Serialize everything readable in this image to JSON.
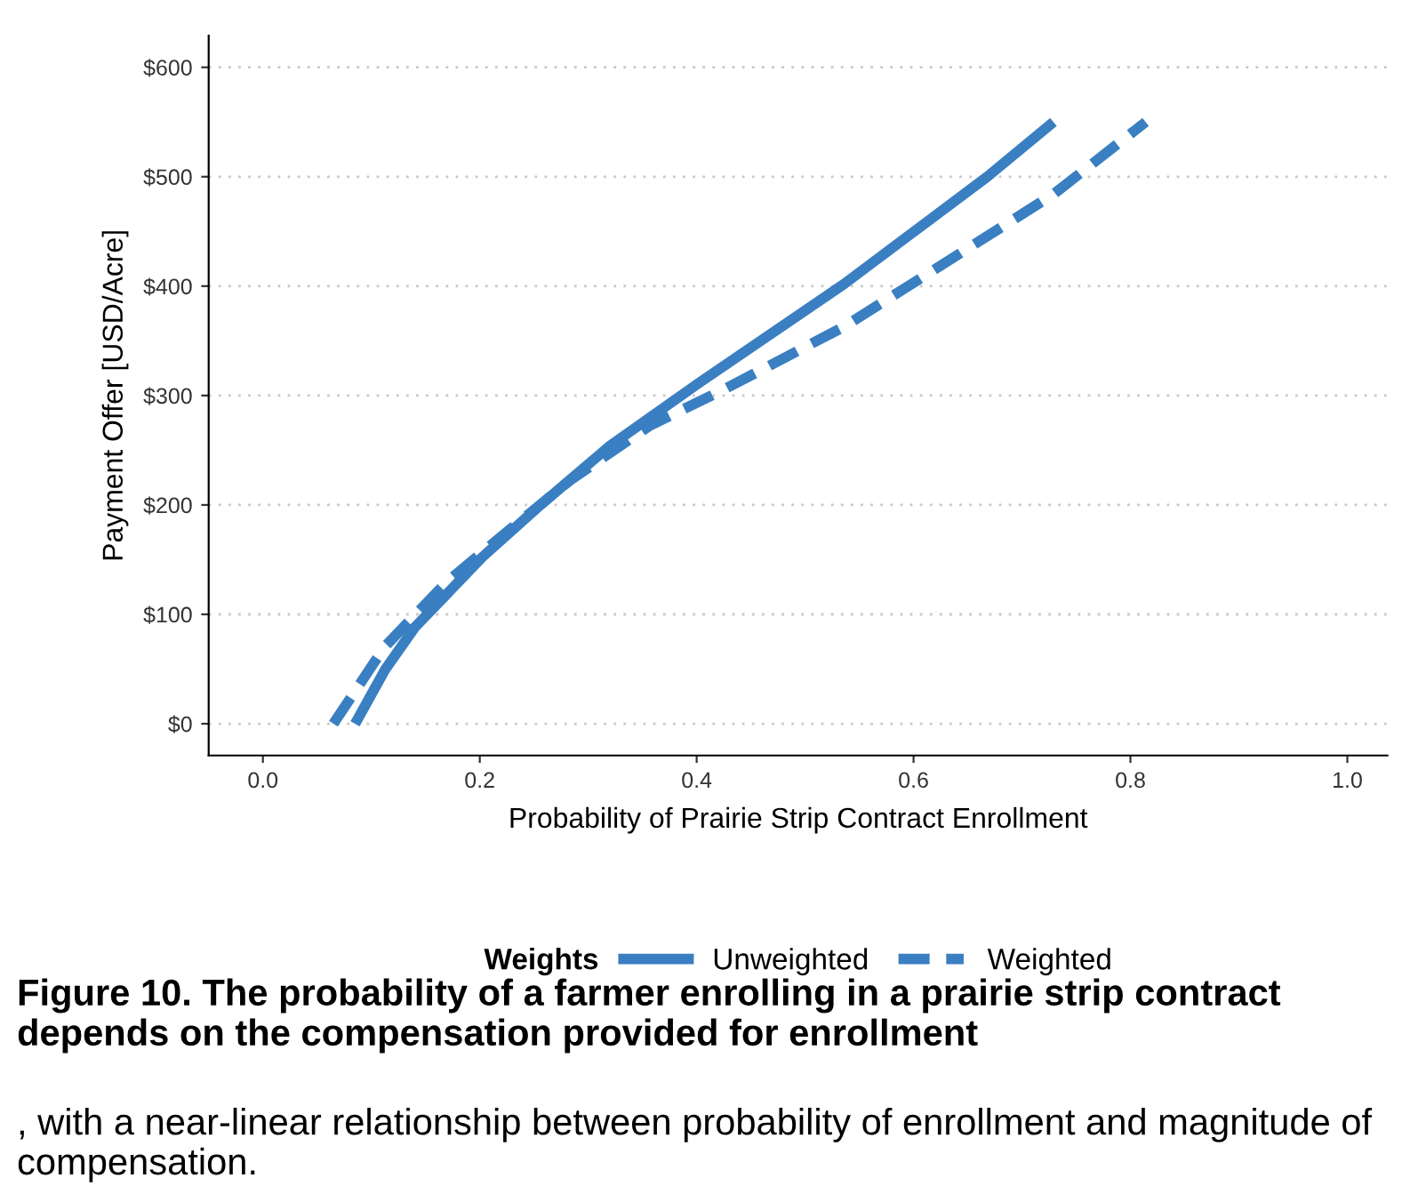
{
  "chart_data": {
    "type": "line",
    "xlabel": "Probability of Prairie Strip Contract Enrollment",
    "ylabel": "Payment Offer [USD/Acre]",
    "legend_title": "Weights",
    "xlim": [
      -0.05,
      1.037
    ],
    "xticks": [
      {
        "value": 0,
        "label": "0.0"
      },
      0.2,
      0.4,
      0.6,
      0.8,
      {
        "value": 1,
        "label": "1.0"
      }
    ],
    "ylim": [
      -29,
      629
    ],
    "yticks": [
      {
        "value": 0,
        "label": "$0"
      },
      {
        "value": 100,
        "label": "$100"
      },
      {
        "value": 200,
        "label": "$200"
      },
      {
        "value": 300,
        "label": "$300"
      },
      {
        "value": 400,
        "label": "$400"
      },
      {
        "value": 500,
        "label": "$500"
      },
      {
        "value": 600,
        "label": "$600"
      }
    ],
    "grid": "y",
    "legend": "bottom",
    "marker": "none",
    "series": [
      {
        "name": "Unweighted",
        "color": "#3a7fc1",
        "line_style": "solid",
        "x": [
          0.085,
          0.113,
          0.14,
          0.202,
          0.256,
          0.32,
          0.4,
          0.536,
          0.668,
          0.729
        ],
        "values": [
          0,
          50,
          88,
          152,
          200,
          254,
          310,
          402,
          500,
          550
        ]
      },
      {
        "name": "Weighted",
        "color": "#3a7fc1",
        "line_style": "dashed",
        "x": [
          0.065,
          0.112,
          0.17,
          0.227,
          0.284,
          0.356,
          0.428,
          0.536,
          0.643,
          0.729,
          0.814
        ],
        "values": [
          0,
          70,
          130,
          177,
          223,
          272,
          307,
          363,
          430,
          484,
          550
        ]
      }
    ],
    "annotations": [
      "Figure 10. The probability of a farmer enrolling in a prairie strip contract depends on the compensation provided for enrollment",
      ", with a near-linear relationship between probability of enrollment and magnitude of compensation."
    ]
  }
}
